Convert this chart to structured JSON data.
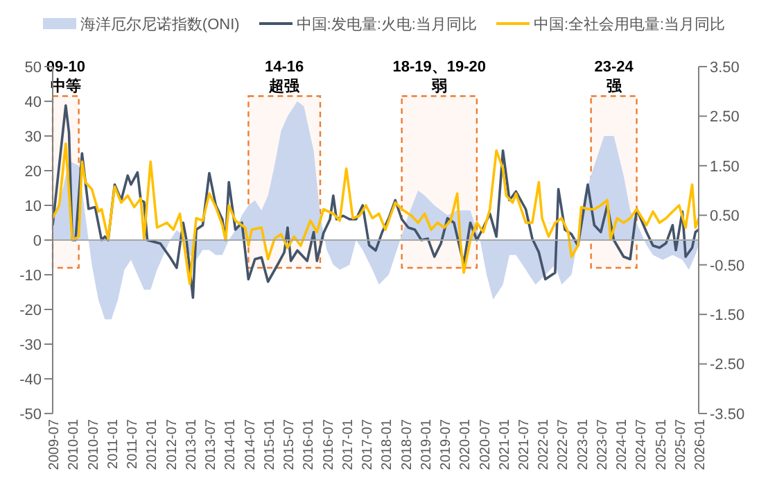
{
  "chart_data": {
    "type": "line",
    "legend": "top",
    "marker": "none",
    "xlim": [
      "2009-07",
      "2026-01"
    ],
    "xticks": [
      "2009-07",
      "2010-01",
      "2010-07",
      "2011-01",
      "2011-07",
      "2012-01",
      "2012-07",
      "2013-01",
      "2013-07",
      "2014-01",
      "2014-07",
      "2015-01",
      "2015-07",
      "2016-01",
      "2016-07",
      "2017-01",
      "2017-07",
      "2018-01",
      "2018-07",
      "2019-01",
      "2019-07",
      "2020-01",
      "2020-07",
      "2021-01",
      "2021-07",
      "2022-01",
      "2022-07",
      "2023-01",
      "2023-07",
      "2024-01",
      "2024-07",
      "2025-01",
      "2025-07",
      "2026-01"
    ],
    "ylim": [
      -50,
      50
    ],
    "yticks": [
      -50,
      -40,
      -30,
      -20,
      -10,
      0,
      10,
      20,
      30,
      40,
      50
    ],
    "y2lim": [
      -3.5,
      3.5
    ],
    "y2ticks": [
      {
        "value": -3.5,
        "label": "-3.50"
      },
      {
        "value": -2.5,
        "label": "-2.50"
      },
      {
        "value": -1.5,
        "label": "-1.50"
      },
      {
        "value": -0.5,
        "label": "-0.50"
      },
      {
        "value": 0.5,
        "label": "0.50"
      },
      {
        "value": 1.5,
        "label": "1.50"
      },
      {
        "value": 2.5,
        "label": "2.50"
      },
      {
        "value": 3.5,
        "label": "3.50"
      }
    ],
    "ref_lines": [
      {
        "axis": "y",
        "value": 0,
        "color": "#a6a6a6"
      }
    ],
    "bands": [
      {
        "axis": "x",
        "from": "2009-07",
        "to": "2010-03",
        "label": "09-10\n中等",
        "color": "#ed7d31"
      },
      {
        "axis": "x",
        "from": "2014-07",
        "to": "2016-05",
        "label": "14-16\n超强",
        "color": "#ed7d31"
      },
      {
        "axis": "x",
        "from": "2018-06",
        "to": "2020-05",
        "label": "18-19、19-20\n弱",
        "color": "#ed7d31"
      },
      {
        "axis": "x",
        "from": "2023-04",
        "to": "2024-06",
        "label": "23-24\n强",
        "color": "#ed7d31"
      }
    ],
    "series": [
      {
        "name": "海洋厄尔尼诺指数(ONI)",
        "type": "area",
        "axis": "y2",
        "color": "#c9d6ee",
        "x": [
          "2009-07",
          "2009-10",
          "2009-12",
          "2010-03",
          "2010-05",
          "2010-07",
          "2010-09",
          "2010-11",
          "2011-01",
          "2011-03",
          "2011-05",
          "2011-07",
          "2011-09",
          "2011-11",
          "2012-01",
          "2012-03",
          "2012-05",
          "2012-07",
          "2012-09",
          "2012-11",
          "2013-01",
          "2013-03",
          "2013-05",
          "2013-07",
          "2013-09",
          "2013-11",
          "2014-01",
          "2014-03",
          "2014-05",
          "2014-07",
          "2014-09",
          "2014-11",
          "2015-01",
          "2015-03",
          "2015-05",
          "2015-07",
          "2015-10",
          "2015-12",
          "2016-03",
          "2016-05",
          "2016-07",
          "2016-09",
          "2016-11",
          "2017-02",
          "2017-04",
          "2017-06",
          "2017-09",
          "2017-11",
          "2018-02",
          "2018-05",
          "2018-08",
          "2018-11",
          "2019-01",
          "2019-04",
          "2019-08",
          "2019-11",
          "2020-03",
          "2020-06",
          "2020-08",
          "2020-10",
          "2021-01",
          "2021-03",
          "2021-05",
          "2021-08",
          "2021-11",
          "2022-02",
          "2022-05",
          "2022-07",
          "2022-10",
          "2022-12",
          "2023-02",
          "2023-05",
          "2023-08",
          "2023-11",
          "2024-02",
          "2024-04",
          "2024-07",
          "2024-09",
          "2024-11",
          "2025-02",
          "2025-05",
          "2025-08",
          "2025-10",
          "2025-12",
          "2026-01"
        ],
        "values": [
          0.4,
          1.0,
          1.6,
          1.5,
          0.5,
          -0.5,
          -1.2,
          -1.6,
          -1.6,
          -1.2,
          -0.6,
          -0.4,
          -0.7,
          -1.0,
          -1.0,
          -0.6,
          -0.3,
          0,
          0.2,
          0.1,
          -0.3,
          -0.4,
          -0.2,
          -0.2,
          -0.3,
          -0.3,
          0,
          0.2,
          0.5,
          0.7,
          0.8,
          0.6,
          0.9,
          1.5,
          2.2,
          2.5,
          2.8,
          2.7,
          1.8,
          0.5,
          -0.2,
          -0.5,
          -0.6,
          -0.5,
          0,
          -0.2,
          -0.6,
          -0.9,
          -0.7,
          -0.1,
          0.5,
          1.0,
          0.9,
          0.7,
          0.5,
          0.6,
          0.6,
          0,
          -0.7,
          -1.2,
          -0.9,
          -0.3,
          -0.3,
          -0.6,
          -0.9,
          -0.7,
          -0.5,
          -0.9,
          -0.7,
          0,
          0.9,
          1.5,
          2.1,
          2.1,
          1.3,
          0.6,
          0.2,
          -0.1,
          -0.3,
          -0.4,
          -0.3,
          -0.4,
          -0.6,
          -0.3,
          -0.1
        ]
      },
      {
        "name": "中国:发电量:火电:当月同比",
        "color": "#44546a",
        "x": [
          "2009-07",
          "2009-11",
          "2009-12",
          "2010-01",
          "2010-02",
          "2010-04",
          "2010-06",
          "2010-08",
          "2010-10",
          "2010-11",
          "2010-12",
          "2011-02",
          "2011-04",
          "2011-06",
          "2011-07",
          "2011-09",
          "2011-10",
          "2011-11",
          "2011-12",
          "2012-04",
          "2012-07",
          "2012-09",
          "2012-11",
          "2012-12",
          "2013-02",
          "2013-03",
          "2013-05",
          "2013-07",
          "2013-09",
          "2013-11",
          "2013-12",
          "2014-01",
          "2014-03",
          "2014-05",
          "2014-07",
          "2014-09",
          "2014-11",
          "2015-01",
          "2015-04",
          "2015-06",
          "2015-07",
          "2015-08",
          "2015-10",
          "2016-01",
          "2016-03",
          "2016-04",
          "2016-06",
          "2016-08",
          "2016-09",
          "2016-10",
          "2016-12",
          "2017-02",
          "2017-04",
          "2017-06",
          "2017-08",
          "2017-10",
          "2017-12",
          "2018-02",
          "2018-04",
          "2018-06",
          "2018-08",
          "2018-10",
          "2018-12",
          "2019-02",
          "2019-04",
          "2019-06",
          "2019-08",
          "2019-10",
          "2019-12",
          "2020-01",
          "2020-03",
          "2020-05",
          "2020-07",
          "2020-09",
          "2020-11",
          "2021-01",
          "2021-03",
          "2021-05",
          "2021-08",
          "2021-10",
          "2021-12",
          "2022-02",
          "2022-05",
          "2022-06",
          "2022-08",
          "2022-10",
          "2022-12",
          "2023-03",
          "2023-05",
          "2023-07",
          "2023-09",
          "2023-11",
          "2024-02",
          "2024-04",
          "2024-06",
          "2024-09",
          "2024-11",
          "2025-01",
          "2025-03",
          "2025-05",
          "2025-06",
          "2025-08",
          "2025-09",
          "2025-11",
          "2025-12",
          "2026-01"
        ],
        "values": [
          4.3,
          38.8,
          31,
          0,
          0,
          25,
          9,
          9.5,
          0,
          1,
          0,
          16,
          11.5,
          18.6,
          16,
          19.5,
          11.5,
          11,
          0,
          -1,
          -5,
          -8,
          5,
          0,
          -16.6,
          3,
          4.3,
          19.3,
          10,
          6,
          0,
          16.7,
          3,
          5,
          -11.3,
          -5.5,
          -5,
          -12,
          -7,
          -3.5,
          3.6,
          -6,
          -3,
          -6,
          2.3,
          -6,
          2,
          6,
          12.8,
          6,
          7,
          6,
          6,
          10,
          -1.5,
          -3,
          2.3,
          6.3,
          11.5,
          6,
          3.6,
          3,
          0,
          0.4,
          -4.8,
          -1,
          6.3,
          5,
          -3,
          -6.8,
          5,
          0,
          3.6,
          7.6,
          1,
          25.8,
          11.5,
          14,
          8.9,
          0.4,
          -3.5,
          -11.3,
          -9.4,
          14.7,
          3,
          1.7,
          -1.6,
          16,
          4.3,
          2.3,
          10,
          0,
          -4.8,
          -5.5,
          8.9,
          2.3,
          -1.6,
          -2.2,
          -0.9,
          4.3,
          -2.9,
          8.2,
          -4.8,
          -2.2,
          2.3,
          3
        ]
      },
      {
        "name": "中国:全社会用电量:当月同比",
        "color": "#ffc000",
        "x": [
          "2009-07",
          "2009-09",
          "2009-11",
          "2010-01",
          "2010-03",
          "2010-04",
          "2010-05",
          "2010-07",
          "2010-09",
          "2010-10",
          "2010-12",
          "2011-02",
          "2011-04",
          "2011-06",
          "2011-08",
          "2011-10",
          "2011-11",
          "2012-01",
          "2012-03",
          "2012-06",
          "2012-08",
          "2012-10",
          "2012-11",
          "2013-01",
          "2013-03",
          "2013-05",
          "2013-07",
          "2013-09",
          "2013-11",
          "2013-12",
          "2014-01",
          "2014-03",
          "2014-06",
          "2014-07",
          "2014-08",
          "2014-11",
          "2015-01",
          "2015-03",
          "2015-05",
          "2015-07",
          "2015-09",
          "2015-11",
          "2016-02",
          "2016-04",
          "2016-06",
          "2016-09",
          "2016-11",
          "2017-01",
          "2017-03",
          "2017-05",
          "2017-07",
          "2017-09",
          "2017-11",
          "2018-01",
          "2018-04",
          "2018-06",
          "2018-09",
          "2018-11",
          "2019-01",
          "2019-03",
          "2019-05",
          "2019-07",
          "2019-09",
          "2019-11",
          "2019-12",
          "2020-01",
          "2020-03",
          "2020-05",
          "2020-07",
          "2020-09",
          "2020-11",
          "2021-01",
          "2021-02",
          "2021-04",
          "2021-05",
          "2021-08",
          "2021-10",
          "2021-12",
          "2022-01",
          "2022-03",
          "2022-05",
          "2022-07",
          "2022-09",
          "2022-10",
          "2022-12",
          "2023-01",
          "2023-03",
          "2023-05",
          "2023-07",
          "2023-09",
          "2023-10",
          "2023-12",
          "2024-02",
          "2024-04",
          "2024-06",
          "2024-09",
          "2024-11",
          "2025-01",
          "2025-03",
          "2025-05",
          "2025-07",
          "2025-09",
          "2025-11",
          "2025-12",
          "2026-01"
        ],
        "values": [
          6.3,
          10,
          27.8,
          0,
          1,
          22.6,
          16.7,
          14.7,
          8.2,
          8.9,
          0.4,
          15.4,
          10.8,
          12.8,
          9.5,
          12,
          0.4,
          22.6,
          3.6,
          5,
          3,
          7.6,
          0.4,
          -12.6,
          6.3,
          5.6,
          13.4,
          9.5,
          4.3,
          0,
          10,
          5.6,
          3.6,
          -1.6,
          3,
          3.6,
          -5.5,
          0.4,
          1.7,
          -2.2,
          1,
          -1.6,
          5.6,
          2.3,
          8.9,
          7.6,
          5.6,
          20.6,
          6.3,
          7,
          10,
          6.3,
          7.6,
          3,
          10.8,
          8.9,
          7,
          5,
          7.6,
          3,
          5,
          3.6,
          5.6,
          13.4,
          -0.9,
          -9.4,
          0,
          5,
          2.3,
          8.9,
          25.8,
          20.6,
          12.8,
          10.8,
          13.4,
          5,
          5,
          16.7,
          6.3,
          1,
          5,
          6.3,
          2.3,
          -4.8,
          -1.6,
          9.5,
          8.9,
          8.9,
          10,
          11.5,
          0.4,
          6.3,
          5,
          6.3,
          8.9,
          4.3,
          8.2,
          5,
          6.3,
          8.2,
          10,
          3.6,
          16,
          3.6,
          6.3
        ]
      }
    ]
  }
}
